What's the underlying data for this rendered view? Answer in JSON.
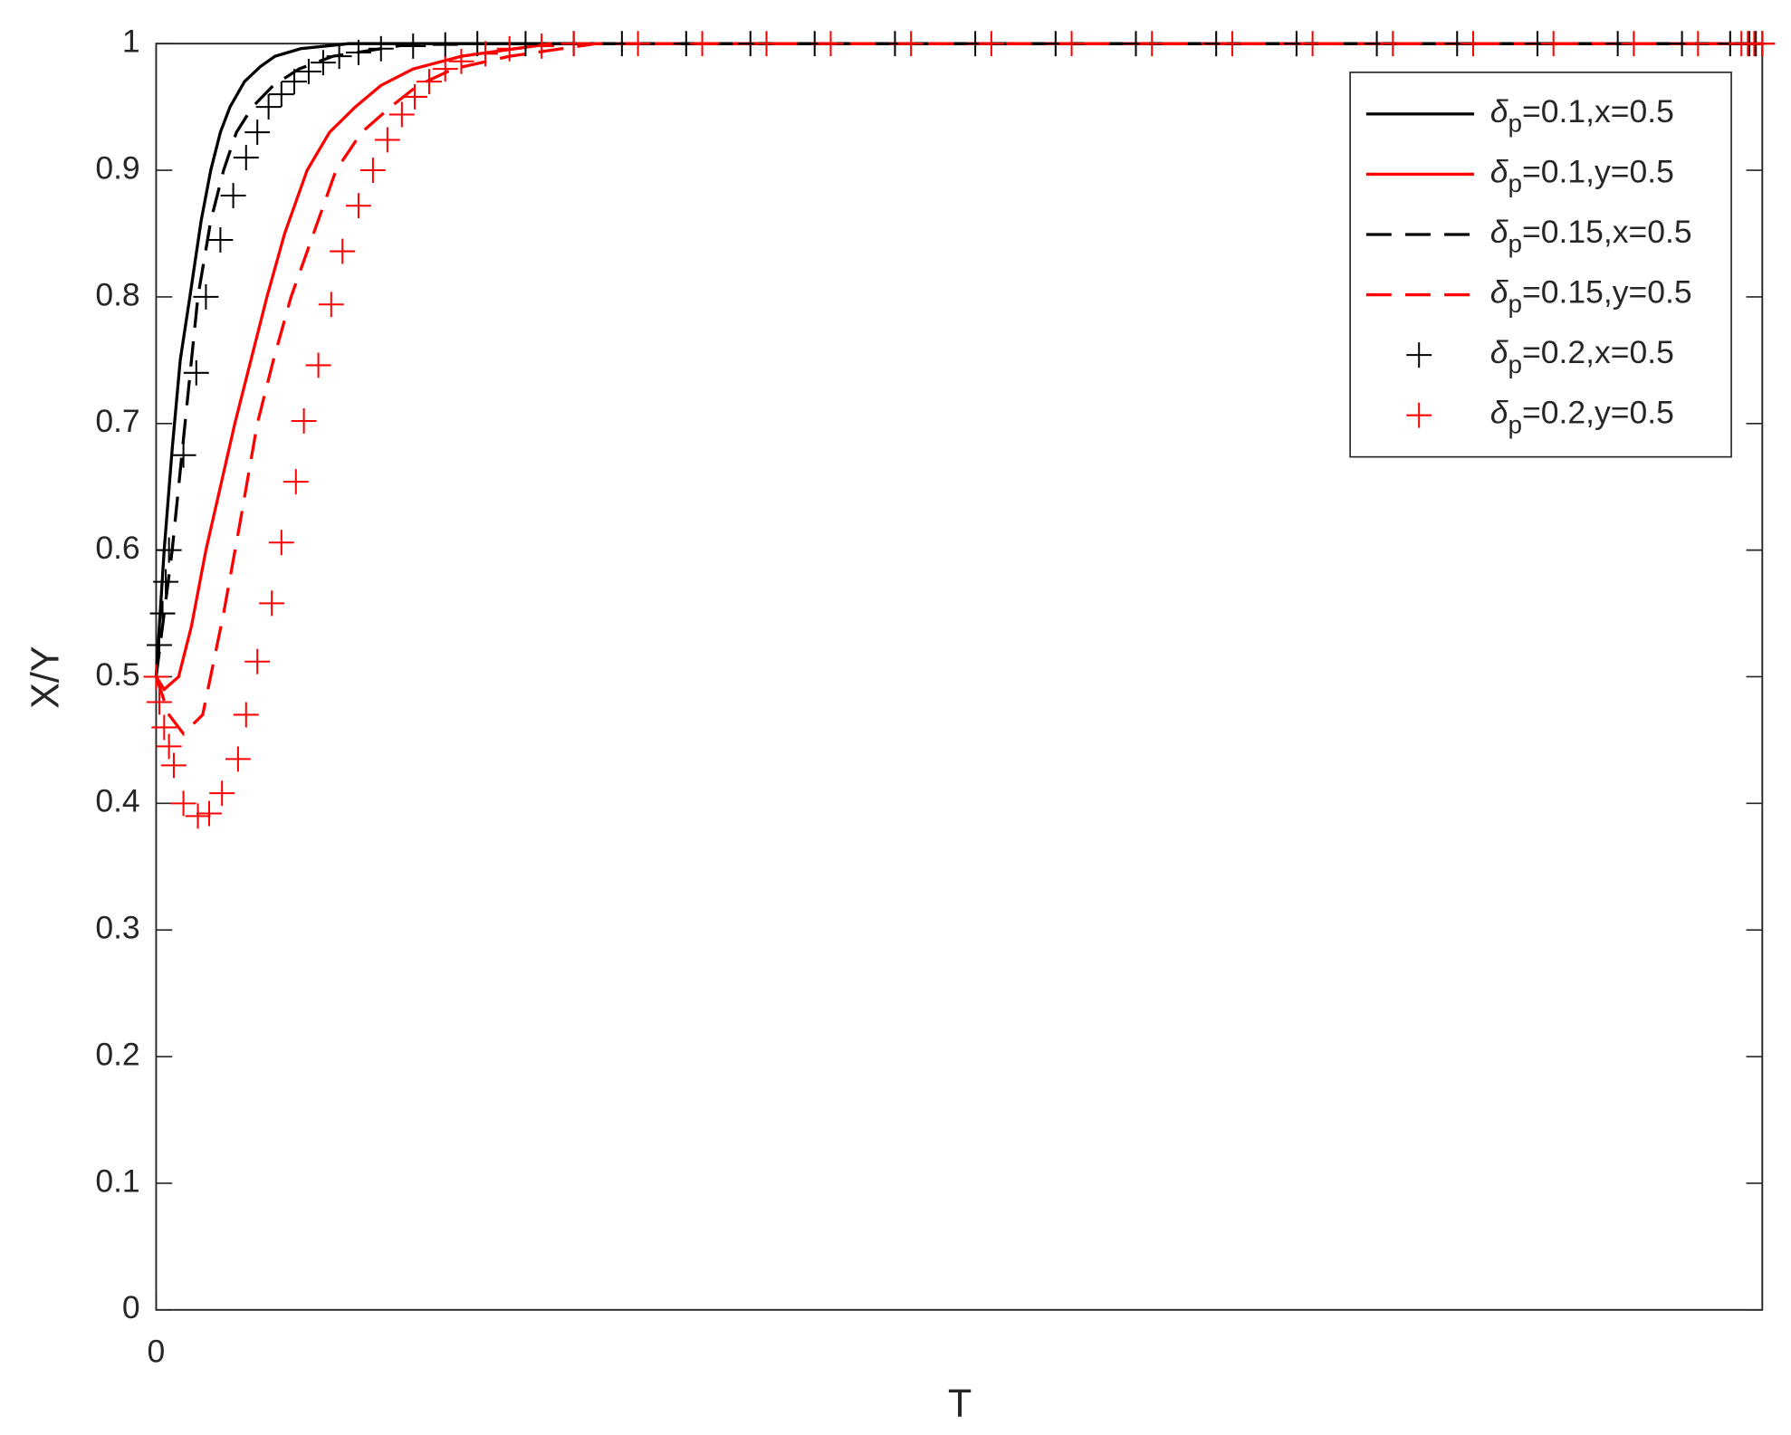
{
  "chart_data": {
    "type": "line",
    "xlabel": "T",
    "ylabel": "X/Y",
    "xlim": [
      0,
      100
    ],
    "xticks": [
      0
    ],
    "ylim": [
      0,
      1
    ],
    "yticks": [
      0,
      0.1,
      0.2,
      0.3,
      0.4,
      0.5,
      0.6,
      0.7,
      0.8,
      0.9,
      1
    ],
    "legend": "upper-right",
    "series": [
      {
        "name": "δp=0.1,x=0.5",
        "color": "#000000",
        "style": "solid",
        "x": [
          0,
          0.5,
          1,
          1.5,
          2.1,
          2.8,
          3.4,
          4,
          4.6,
          5.5,
          6.5,
          7.4,
          9,
          12,
          20,
          40,
          60,
          80,
          100
        ],
        "values": [
          0.5,
          0.6,
          0.68,
          0.75,
          0.8,
          0.86,
          0.9,
          0.93,
          0.95,
          0.97,
          0.982,
          0.99,
          0.996,
          1,
          1,
          1,
          1,
          1,
          1
        ]
      },
      {
        "name": "δp=0.1,y=0.5",
        "color": "#ff0000",
        "style": "solid",
        "x": [
          0,
          0.5,
          1.4,
          2.2,
          3.1,
          4,
          4.9,
          5.9,
          6.9,
          8,
          9.4,
          10.8,
          12.4,
          14,
          16,
          19,
          24.6,
          40,
          60,
          80,
          100
        ],
        "values": [
          0.5,
          0.49,
          0.5,
          0.54,
          0.6,
          0.65,
          0.7,
          0.75,
          0.8,
          0.85,
          0.9,
          0.93,
          0.95,
          0.967,
          0.98,
          0.99,
          1,
          1,
          1,
          1,
          1
        ]
      },
      {
        "name": "δp=0.15,x=0.5",
        "color": "#000000",
        "style": "dashed",
        "x": [
          0,
          0.5,
          1,
          1.8,
          2.6,
          3.4,
          4.2,
          5,
          6,
          7.3,
          8.9,
          11,
          16,
          30,
          50,
          70,
          100
        ],
        "values": [
          0.5,
          0.55,
          0.6,
          0.7,
          0.8,
          0.86,
          0.9,
          0.93,
          0.95,
          0.967,
          0.98,
          0.99,
          1,
          1,
          1,
          1,
          1
        ]
      },
      {
        "name": "δp=0.15,y=0.5",
        "color": "#ff0000",
        "style": "dashed",
        "x": [
          0,
          0.8,
          1.7,
          2.9,
          4.2,
          5.2,
          6.3,
          7.3,
          8.4,
          9.8,
          11.2,
          12.8,
          14.6,
          16.3,
          18.5,
          22,
          27.4,
          40,
          60,
          80,
          100
        ],
        "values": [
          0.5,
          0.47,
          0.455,
          0.47,
          0.55,
          0.62,
          0.7,
          0.75,
          0.8,
          0.85,
          0.9,
          0.93,
          0.95,
          0.967,
          0.98,
          0.99,
          1,
          1,
          1,
          1,
          1
        ]
      },
      {
        "name": "δp=0.2,x=0.5",
        "color": "#000000",
        "style": "plus",
        "x": [
          0,
          0.2,
          0.4,
          0.6,
          0.8,
          1.7,
          2.5,
          3.1,
          4,
          4.8,
          5.6,
          6.3,
          7,
          7.8,
          8.6,
          9.5,
          10.4,
          11.4,
          12.6,
          14,
          16,
          18,
          20,
          23,
          26,
          29,
          33,
          37,
          41,
          46,
          51,
          56,
          61,
          66,
          71,
          76,
          81,
          86,
          91,
          95,
          98,
          99.2,
          99.6,
          100
        ],
        "values": [
          0.5,
          0.525,
          0.55,
          0.575,
          0.6,
          0.675,
          0.74,
          0.8,
          0.845,
          0.88,
          0.91,
          0.93,
          0.95,
          0.96,
          0.97,
          0.978,
          0.985,
          0.99,
          0.993,
          0.996,
          0.998,
          0.999,
          1,
          1,
          1,
          1,
          1,
          1,
          1,
          1,
          1,
          1,
          1,
          1,
          1,
          1,
          1,
          1,
          1,
          1,
          1,
          1,
          1,
          1
        ]
      },
      {
        "name": "δp=0.2,y=0.5",
        "color": "#ff0000",
        "style": "plus",
        "x": [
          0,
          0.2,
          0.5,
          0.8,
          1.1,
          1.7,
          2.6,
          3.3,
          4.1,
          5.1,
          5.6,
          6.3,
          7.2,
          7.8,
          8.7,
          9.2,
          10.1,
          10.9,
          11.6,
          12.6,
          13.5,
          14.4,
          15.3,
          16.1,
          17,
          18,
          19,
          20.5,
          22,
          24,
          26,
          30,
          34,
          38,
          42,
          47,
          52,
          57,
          62,
          67,
          72,
          77,
          82,
          87,
          92,
          96,
          98.7,
          99.1,
          99.5,
          100
        ],
        "values": [
          0.5,
          0.48,
          0.46,
          0.445,
          0.43,
          0.4,
          0.39,
          0.392,
          0.408,
          0.435,
          0.47,
          0.512,
          0.558,
          0.606,
          0.654,
          0.702,
          0.746,
          0.794,
          0.836,
          0.872,
          0.9,
          0.924,
          0.944,
          0.958,
          0.97,
          0.98,
          0.986,
          0.992,
          0.996,
          0.998,
          1,
          1,
          1,
          1,
          1,
          1,
          1,
          1,
          1,
          1,
          1,
          1,
          1,
          1,
          1,
          1,
          1,
          1,
          1,
          1
        ]
      }
    ]
  }
}
